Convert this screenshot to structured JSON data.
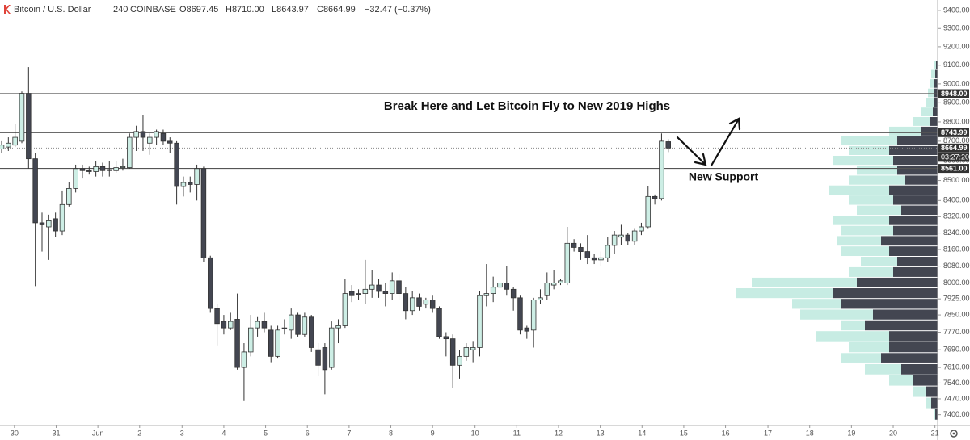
{
  "chart_data": {
    "type": "candlestick",
    "header": {
      "symbol": "Bitcoin / U.S. Dollar",
      "interval": "240",
      "exchange": "COINBASE",
      "open": "O8697.45",
      "high": "H8710.00",
      "low": "L8643.97",
      "close": "C8664.99",
      "change": "−32.47 (−0.37%)"
    },
    "title": "Break Here and Let Bitcoin Fly to New 2019 Highs",
    "annotation": "New Support",
    "log_scale": true,
    "up_color": "#cdeee5",
    "down_color": "#434651",
    "ylim": [
      7353,
      9458
    ],
    "yticks": [
      {
        "value": 9400,
        "label": "9400.00"
      },
      {
        "value": 9300,
        "label": "9300.00"
      },
      {
        "value": 9200,
        "label": "9200.00"
      },
      {
        "value": 9100,
        "label": "9100.00"
      },
      {
        "value": 9000,
        "label": "9000.00"
      },
      {
        "value": 8900,
        "label": "8900.00"
      },
      {
        "value": 8800,
        "label": "8800.00"
      },
      {
        "value": 8700,
        "label": "8700.00"
      },
      {
        "value": 8600,
        "label": "8600.00"
      },
      {
        "value": 8500,
        "label": "8500.00"
      },
      {
        "value": 8400,
        "label": "8400.00"
      },
      {
        "value": 8320,
        "label": "8320.00"
      },
      {
        "value": 8240,
        "label": "8240.00"
      },
      {
        "value": 8160,
        "label": "8160.00"
      },
      {
        "value": 8080,
        "label": "8080.00"
      },
      {
        "value": 8000,
        "label": "8000.00"
      },
      {
        "value": 7925,
        "label": "7925.00"
      },
      {
        "value": 7850,
        "label": "7850.00"
      },
      {
        "value": 7770,
        "label": "7770.00"
      },
      {
        "value": 7690,
        "label": "7690.00"
      },
      {
        "value": 7610,
        "label": "7610.00"
      },
      {
        "value": 7540,
        "label": "7540.00"
      },
      {
        "value": 7470,
        "label": "7470.00"
      },
      {
        "value": 7400,
        "label": "7400.00"
      }
    ],
    "xlim": [
      -0.24,
      139
    ],
    "xticks": [
      {
        "value": 1.9,
        "label": "30"
      },
      {
        "value": 8.1,
        "label": "31"
      },
      {
        "value": 14.3,
        "label": "Jun"
      },
      {
        "value": 20.5,
        "label": "2"
      },
      {
        "value": 26.8,
        "label": "3"
      },
      {
        "value": 33.0,
        "label": "4"
      },
      {
        "value": 39.2,
        "label": "5"
      },
      {
        "value": 45.4,
        "label": "6"
      },
      {
        "value": 51.6,
        "label": "7"
      },
      {
        "value": 57.8,
        "label": "8"
      },
      {
        "value": 64.0,
        "label": "9"
      },
      {
        "value": 70.3,
        "label": "10"
      },
      {
        "value": 76.5,
        "label": "11"
      },
      {
        "value": 82.7,
        "label": "12"
      },
      {
        "value": 88.9,
        "label": "13"
      },
      {
        "value": 95.1,
        "label": "14"
      },
      {
        "value": 101.3,
        "label": "15"
      },
      {
        "value": 107.5,
        "label": "16"
      },
      {
        "value": 113.8,
        "label": "17"
      },
      {
        "value": 120.0,
        "label": "18"
      },
      {
        "value": 126.2,
        "label": "19"
      },
      {
        "value": 132.4,
        "label": "20"
      },
      {
        "value": 138.6,
        "label": "21"
      }
    ],
    "levels": [
      {
        "value": 8948,
        "label": "8948.00"
      },
      {
        "value": 8743.99,
        "label": "8743.99"
      },
      {
        "value": 8561,
        "label": "8561.00"
      }
    ],
    "last_price": {
      "value": 8664.99,
      "label": "8664.99"
    },
    "countdown": "03:27:20",
    "open": [
      8660,
      8670,
      8680,
      8700,
      8950,
      8610,
      8290,
      8270,
      8310,
      8250,
      8380,
      8460,
      8560,
      8550,
      8545,
      8570,
      8550,
      8550,
      8565,
      8565,
      8720,
      8750,
      8690,
      8720,
      8740,
      8700,
      8690,
      8470,
      8490,
      8480,
      8560,
      8120,
      7880,
      7820,
      7790,
      7830,
      7610,
      7680,
      7790,
      7820,
      7780,
      7660,
      7790,
      7780,
      7850,
      7760,
      7840,
      7690,
      7700,
      7610,
      7790,
      7800,
      7960,
      7950,
      7950,
      7970,
      7990,
      7960,
      7950,
      8010,
      7950,
      7870,
      7930,
      7900,
      7920,
      7880,
      7750,
      7740,
      7620,
      7660,
      7690,
      7700,
      7940,
      7950,
      7980,
      8000,
      7970,
      7930,
      7790,
      7780,
      7920,
      7940,
      7990,
      8000,
      8000,
      8190,
      8170,
      8150,
      8120,
      8110,
      8120,
      8180,
      8220,
      8230,
      8200,
      8250,
      8270,
      8420,
      8410,
      8697.45
    ],
    "high": [
      8700,
      8720,
      8790,
      8960,
      9090,
      8640,
      8340,
      8330,
      8340,
      8450,
      8490,
      8580,
      8580,
      8570,
      8600,
      8590,
      8600,
      8600,
      8610,
      8740,
      8780,
      8835,
      8740,
      8760,
      8760,
      8720,
      8700,
      8520,
      8520,
      8580,
      8570,
      8130,
      7900,
      7850,
      7860,
      7950,
      7720,
      7850,
      7840,
      7860,
      7800,
      7800,
      7830,
      7880,
      7860,
      7860,
      7850,
      7720,
      7720,
      7820,
      7830,
      8020,
      7990,
      7970,
      8110,
      8060,
      8020,
      8000,
      8050,
      8040,
      7980,
      7960,
      7950,
      7930,
      7940,
      7890,
      7770,
      7760,
      7690,
      7720,
      7730,
      7960,
      8090,
      8030,
      8060,
      8080,
      7980,
      7940,
      7800,
      7930,
      7970,
      8050,
      8060,
      8020,
      8270,
      8210,
      8190,
      8230,
      8140,
      8150,
      8220,
      8250,
      8280,
      8240,
      8260,
      8290,
      8470,
      8430,
      8740,
      8710
    ],
    "low": [
      8640,
      8650,
      8670,
      8690,
      8560,
      7985,
      8150,
      8110,
      8220,
      8230,
      8370,
      8440,
      8510,
      8530,
      8520,
      8520,
      8520,
      8540,
      8550,
      8560,
      8650,
      8650,
      8630,
      8680,
      8680,
      8640,
      8380,
      8420,
      8440,
      8400,
      8100,
      7860,
      7710,
      7760,
      7780,
      7600,
      7460,
      7660,
      7750,
      7770,
      7630,
      7650,
      7760,
      7740,
      7750,
      7750,
      7680,
      7570,
      7490,
      7600,
      7720,
      7790,
      7910,
      7920,
      7900,
      7930,
      7930,
      7890,
      7920,
      7920,
      7830,
      7850,
      7870,
      7880,
      7860,
      7740,
      7660,
      7520,
      7560,
      7640,
      7630,
      7660,
      7890,
      7910,
      7960,
      7940,
      7870,
      7760,
      7740,
      7700,
      7900,
      7920,
      7970,
      7990,
      7990,
      8150,
      8110,
      8090,
      8090,
      8080,
      8100,
      8140,
      8180,
      8180,
      8180,
      8230,
      8260,
      8380,
      8400,
      8643.97
    ],
    "close": [
      8680,
      8690,
      8720,
      8950,
      8610,
      8290,
      8280,
      8300,
      8250,
      8380,
      8460,
      8560,
      8550,
      8545,
      8570,
      8550,
      8555,
      8565,
      8570,
      8720,
      8750,
      8720,
      8720,
      8750,
      8700,
      8690,
      8470,
      8490,
      8480,
      8560,
      8120,
      7880,
      7810,
      7790,
      7820,
      7610,
      7680,
      7790,
      7820,
      7790,
      7660,
      7780,
      7785,
      7850,
      7760,
      7840,
      7700,
      7620,
      7600,
      7790,
      7800,
      7950,
      7940,
      7945,
      7970,
      7990,
      7960,
      7950,
      8010,
      7950,
      7870,
      7930,
      7890,
      7920,
      7880,
      7750,
      7740,
      7620,
      7660,
      7700,
      7700,
      7940,
      7950,
      7980,
      8000,
      7970,
      7930,
      7780,
      7775,
      7920,
      7930,
      8000,
      8000,
      8010,
      8190,
      8170,
      8150,
      8120,
      8110,
      8120,
      8180,
      8230,
      8230,
      8200,
      8250,
      8270,
      8420,
      8410,
      8700,
      8664.99
    ],
    "volume_profile": {
      "levels": [
        9100,
        9050,
        9000,
        8950,
        8900,
        8850,
        8800,
        8750,
        8700,
        8650,
        8600,
        8550,
        8500,
        8450,
        8400,
        8350,
        8300,
        8250,
        8200,
        8150,
        8100,
        8050,
        8000,
        7950,
        7900,
        7850,
        7800,
        7750,
        7700,
        7650,
        7600,
        7550,
        7500,
        7450,
        7400
      ],
      "dark_color": "#434651",
      "light_color": "#c7ece3",
      "dark": [
        2,
        3,
        4,
        4,
        5,
        6,
        10,
        20,
        50,
        60,
        55,
        50,
        40,
        60,
        55,
        45,
        60,
        55,
        70,
        60,
        50,
        55,
        100,
        130,
        120,
        80,
        90,
        60,
        60,
        70,
        45,
        30,
        15,
        8,
        3
      ],
      "light": [
        3,
        5,
        6,
        8,
        10,
        14,
        20,
        40,
        70,
        50,
        75,
        50,
        70,
        75,
        55,
        55,
        70,
        65,
        55,
        60,
        45,
        55,
        130,
        120,
        60,
        90,
        30,
        90,
        50,
        50,
        45,
        30,
        15,
        7,
        2
      ]
    }
  }
}
